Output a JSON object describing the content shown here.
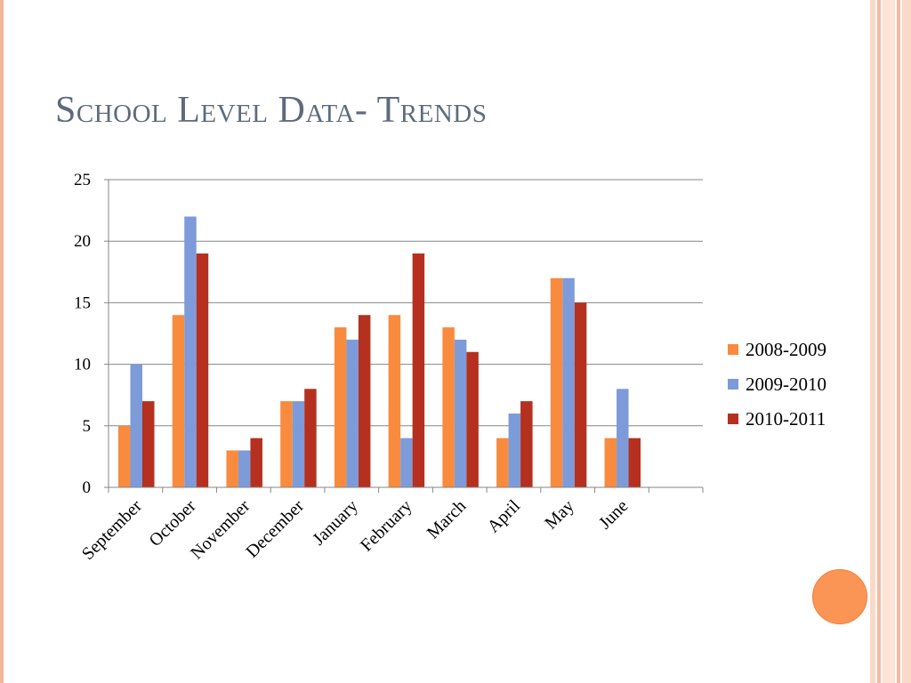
{
  "slide": {
    "title": "School Level Data- Trends"
  },
  "colors": {
    "frame_light": "#fbd9c8",
    "frame_mid": "#f6b9a0",
    "deco_circle": "#fb9555",
    "title": "#5d6b7c"
  },
  "chart_data": {
    "type": "bar",
    "categories": [
      "September",
      "October",
      "November",
      "December",
      "January",
      "February",
      "March",
      "April",
      "May",
      "June",
      ""
    ],
    "series": [
      {
        "name": "2008-2009",
        "color": "#f98b3e",
        "values": [
          5,
          14,
          3,
          7,
          13,
          14,
          13,
          4,
          17,
          4,
          null
        ]
      },
      {
        "name": "2009-2010",
        "color": "#7d9bd8",
        "values": [
          10,
          22,
          3,
          7,
          12,
          4,
          12,
          6,
          17,
          8,
          null
        ]
      },
      {
        "name": "2010-2011",
        "color": "#b5301e",
        "values": [
          7,
          19,
          4,
          8,
          14,
          19,
          11,
          7,
          15,
          4,
          null
        ]
      }
    ],
    "ylim": [
      0,
      25
    ],
    "yticks": [
      "0",
      "5",
      "10",
      "15",
      "20",
      "25"
    ],
    "grid": true,
    "legend": "right"
  }
}
